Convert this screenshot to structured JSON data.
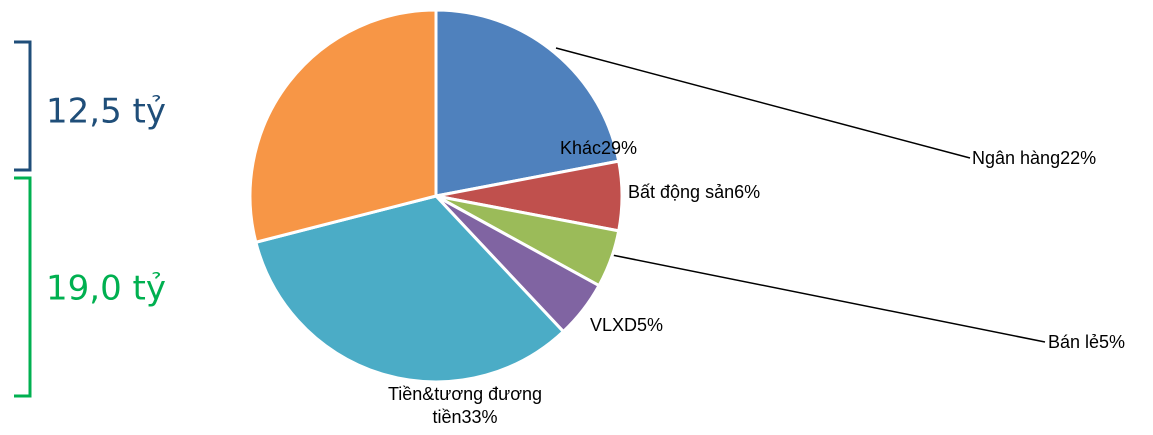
{
  "chart_data": {
    "type": "pie",
    "categories": [
      "Ngân hàng",
      "Bất động sản",
      "Bán lẻ",
      "VLXD",
      "Tiền&tương đương tiền",
      "Khác"
    ],
    "values": [
      22,
      6,
      5,
      5,
      33,
      29
    ],
    "value_labels": [
      "22%",
      "6%",
      "5%",
      "5%",
      "33%",
      "29%"
    ],
    "colors": [
      "#4f81bd",
      "#c0504d",
      "#9bbb59",
      "#8064a2",
      "#4bacc6",
      "#f79646"
    ],
    "annotations": [
      "12,5 tỷ",
      "19,0 tỷ"
    ]
  }
}
